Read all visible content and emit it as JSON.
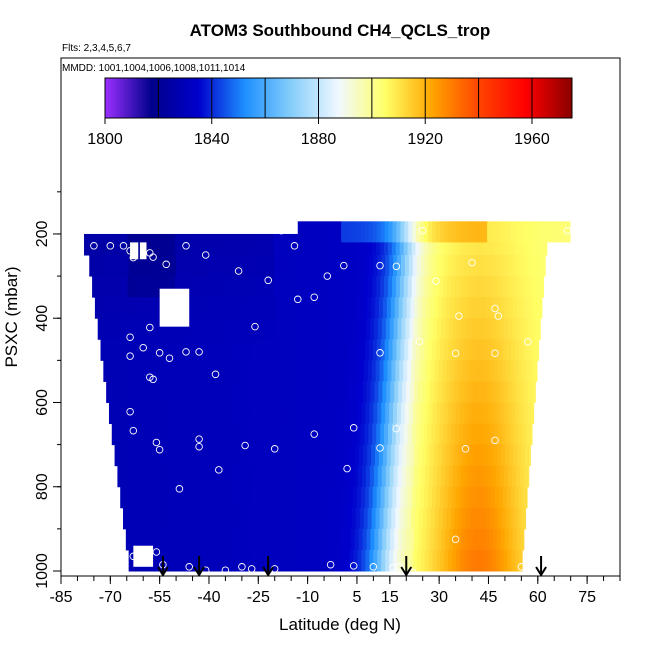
{
  "chart_data": {
    "type": "heatmap",
    "title": "ATOM3 Southbound CH4_QCLS_trop",
    "subtitle_flights": "Flts: 2,3,4,5,6,7",
    "subtitle_dates": "MMDD: 1001,1004,1006,1008,1011,1014",
    "xlabel": "Latitude (deg N)",
    "ylabel": "PSXC (mbar)",
    "xlim": [
      -85,
      85
    ],
    "ylim": [
      1000,
      0
    ],
    "x_ticks": [
      -85,
      -70,
      -55,
      -40,
      -25,
      -10,
      5,
      15,
      30,
      45,
      60,
      75
    ],
    "y_ticks": [
      200,
      400,
      600,
      800,
      1000
    ],
    "colorbar": {
      "range": [
        1800,
        1975
      ],
      "tick_values": [
        1800,
        1840,
        1880,
        1920,
        1960
      ],
      "colors": [
        "#9B30FF",
        "#00008B",
        "#0000CD",
        "#1E90FF",
        "#87CEFA",
        "#F0F8FF",
        "#FFFF66",
        "#FFA500",
        "#FF4500",
        "#FF0000",
        "#8B0000"
      ]
    },
    "arrow_latitudes": [
      -54,
      -43,
      -22,
      20,
      61
    ],
    "pressure_levels": [
      200,
      250,
      300,
      350,
      400,
      450,
      500,
      550,
      600,
      650,
      700,
      750,
      800,
      850,
      900,
      950,
      1000
    ],
    "samples": [
      {
        "lat": -80,
        "p": 228
      },
      {
        "lat": -75,
        "p": 228
      },
      {
        "lat": -70,
        "p": 228
      },
      {
        "lat": -66,
        "p": 228
      },
      {
        "lat": -64,
        "p": 240
      },
      {
        "lat": -63,
        "p": 256
      },
      {
        "lat": -58,
        "p": 245
      },
      {
        "lat": -57,
        "p": 255
      },
      {
        "lat": -53,
        "p": 272
      },
      {
        "lat": -47,
        "p": 228
      },
      {
        "lat": -41,
        "p": 250
      },
      {
        "lat": -31,
        "p": 288
      },
      {
        "lat": -22,
        "p": 310
      },
      {
        "lat": -14,
        "p": 228
      },
      {
        "lat": -13,
        "p": 355
      },
      {
        "lat": -8,
        "p": 350
      },
      {
        "lat": -4,
        "p": 300
      },
      {
        "lat": 1,
        "p": 275
      },
      {
        "lat": 12,
        "p": 275
      },
      {
        "lat": 17,
        "p": 277
      },
      {
        "lat": 29,
        "p": 312
      },
      {
        "lat": 40,
        "p": 268
      },
      {
        "lat": 47,
        "p": 377
      },
      {
        "lat": 48,
        "p": 395
      },
      {
        "lat": 69,
        "p": 192
      },
      {
        "lat": 25,
        "p": 192
      },
      {
        "lat": -18,
        "p": 192
      },
      {
        "lat": -58,
        "p": 422
      },
      {
        "lat": -64,
        "p": 445
      },
      {
        "lat": -60,
        "p": 470
      },
      {
        "lat": -55,
        "p": 482
      },
      {
        "lat": -52,
        "p": 495
      },
      {
        "lat": -64,
        "p": 490
      },
      {
        "lat": -47,
        "p": 480
      },
      {
        "lat": -43,
        "p": 480
      },
      {
        "lat": -26,
        "p": 420
      },
      {
        "lat": -38,
        "p": 533
      },
      {
        "lat": -58,
        "p": 540
      },
      {
        "lat": -57,
        "p": 545
      },
      {
        "lat": 12,
        "p": 482
      },
      {
        "lat": 24,
        "p": 455
      },
      {
        "lat": 35,
        "p": 483
      },
      {
        "lat": 47,
        "p": 483
      },
      {
        "lat": 57,
        "p": 456
      },
      {
        "lat": 36,
        "p": 395
      },
      {
        "lat": -64,
        "p": 622
      },
      {
        "lat": -63,
        "p": 667
      },
      {
        "lat": -56,
        "p": 695
      },
      {
        "lat": -55,
        "p": 712
      },
      {
        "lat": -43,
        "p": 687
      },
      {
        "lat": -43,
        "p": 705
      },
      {
        "lat": -29,
        "p": 702
      },
      {
        "lat": -20,
        "p": 710
      },
      {
        "lat": -8,
        "p": 675
      },
      {
        "lat": 4,
        "p": 660
      },
      {
        "lat": 12,
        "p": 708
      },
      {
        "lat": 17,
        "p": 662
      },
      {
        "lat": 38,
        "p": 710
      },
      {
        "lat": 47,
        "p": 690
      },
      {
        "lat": -37,
        "p": 760
      },
      {
        "lat": 2,
        "p": 757
      },
      {
        "lat": -49,
        "p": 805
      },
      {
        "lat": 35,
        "p": 925
      },
      {
        "lat": -67,
        "p": 955
      },
      {
        "lat": -68,
        "p": 960
      },
      {
        "lat": -63,
        "p": 965
      },
      {
        "lat": -56,
        "p": 955
      },
      {
        "lat": -54,
        "p": 985
      },
      {
        "lat": -46,
        "p": 990
      },
      {
        "lat": -41,
        "p": 998
      },
      {
        "lat": -35,
        "p": 998
      },
      {
        "lat": -30,
        "p": 990
      },
      {
        "lat": -27,
        "p": 995
      },
      {
        "lat": -20,
        "p": 995
      },
      {
        "lat": -3,
        "p": 985
      },
      {
        "lat": 4,
        "p": 988
      },
      {
        "lat": 10,
        "p": 990
      },
      {
        "lat": 16,
        "p": 992
      },
      {
        "lat": 18,
        "p": 990
      },
      {
        "lat": 22,
        "p": 1003
      },
      {
        "lat": 34,
        "p": 1010
      },
      {
        "lat": 55,
        "p": 990
      }
    ]
  }
}
